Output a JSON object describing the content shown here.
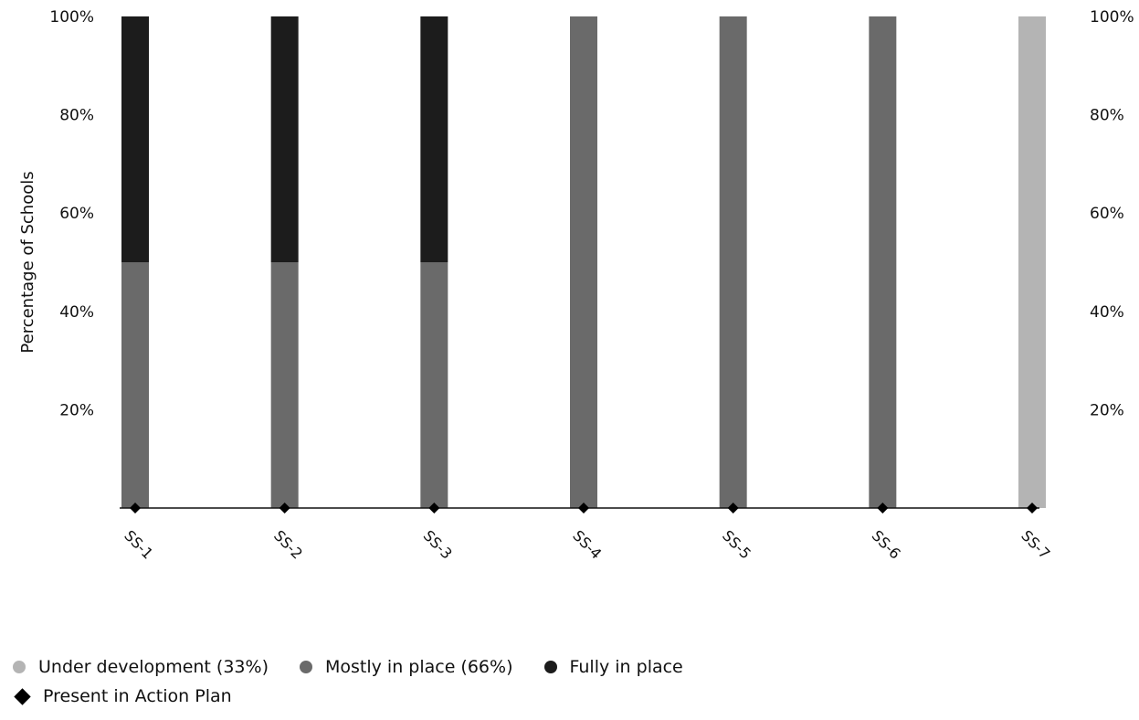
{
  "chart_data": {
    "type": "bar",
    "stacked": true,
    "categories": [
      "SS-1",
      "SS-2",
      "SS-3",
      "SS-4",
      "SS-5",
      "SS-6",
      "SS-7"
    ],
    "series": [
      {
        "name": "Under development (33%)",
        "color": "#b4b4b4",
        "values": [
          0,
          0,
          0,
          0,
          0,
          0,
          100
        ]
      },
      {
        "name": "Mostly in place (66%)",
        "color": "#6a6a6a",
        "values": [
          50,
          50,
          50,
          100,
          100,
          100,
          0
        ]
      },
      {
        "name": "Fully in place",
        "color": "#1c1c1c",
        "values": [
          50,
          50,
          50,
          0,
          0,
          0,
          0
        ]
      }
    ],
    "markers": {
      "name": "Present in Action Plan",
      "shape": "diamond",
      "color": "#000000",
      "values": [
        0,
        0,
        0,
        0,
        0,
        0,
        0
      ]
    },
    "ylabel": "Percentage of Schools",
    "xlabel": "",
    "ylim": [
      0,
      100
    ],
    "yticks": [
      20,
      40,
      60,
      80,
      100
    ],
    "ytick_labels": [
      "20%",
      "40%",
      "60%",
      "80%",
      "100%"
    ],
    "secondary_y_axis": true,
    "grid": false,
    "legend_position": "bottom-left"
  }
}
